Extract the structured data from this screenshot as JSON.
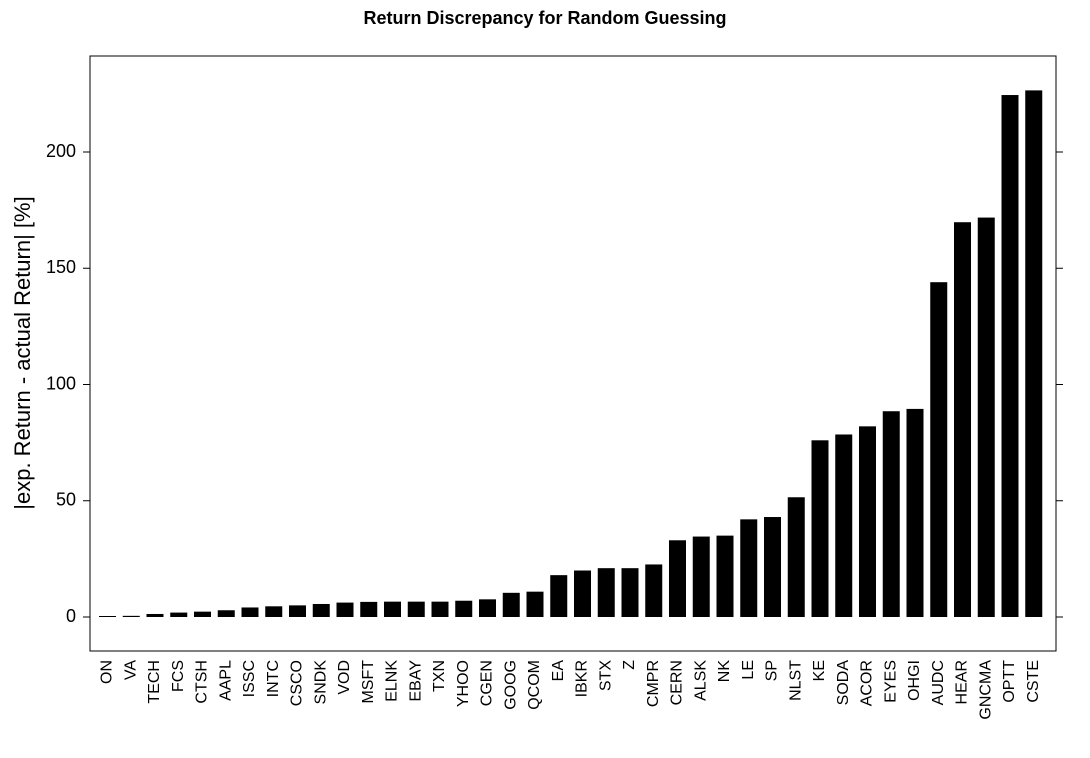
{
  "chart_data": {
    "type": "bar",
    "title": "Return Discrepancy for Random Guessing",
    "xlabel": "",
    "ylabel": "|exp. Return - actual Return| [%]",
    "ylim": [
      -15,
      242
    ],
    "yticks": [
      0,
      50,
      100,
      150,
      200
    ],
    "grid": false,
    "bar_color": "#000000",
    "categories": [
      "ON",
      "VA",
      "TECH",
      "FCS",
      "CTSH",
      "AAPL",
      "ISSC",
      "INTC",
      "CSCO",
      "SNDK",
      "VOD",
      "MSFT",
      "ELNK",
      "EBAY",
      "TXN",
      "YHOO",
      "CGEN",
      "GOOG",
      "QCOM",
      "EA",
      "IBKR",
      "STX",
      "Z",
      "CMPR",
      "CERN",
      "ALSK",
      "NK",
      "LE",
      "SP",
      "NLST",
      "KE",
      "SODA",
      "ACOR",
      "EYES",
      "OHGI",
      "AUDC",
      "HEAR",
      "GNCMA",
      "OPTT",
      "CSTE"
    ],
    "values": [
      0.3,
      0.5,
      1.3,
      1.9,
      2.3,
      2.9,
      4.1,
      4.6,
      5.0,
      5.6,
      6.2,
      6.5,
      6.6,
      6.6,
      6.6,
      7.0,
      7.6,
      10.4,
      10.9,
      18.0,
      20.0,
      21.0,
      21.0,
      22.6,
      33.0,
      34.6,
      35.0,
      42.0,
      43.0,
      51.5,
      76.0,
      78.5,
      82.0,
      88.5,
      89.5,
      144.0,
      169.8,
      171.8,
      224.5,
      226.5
    ]
  }
}
